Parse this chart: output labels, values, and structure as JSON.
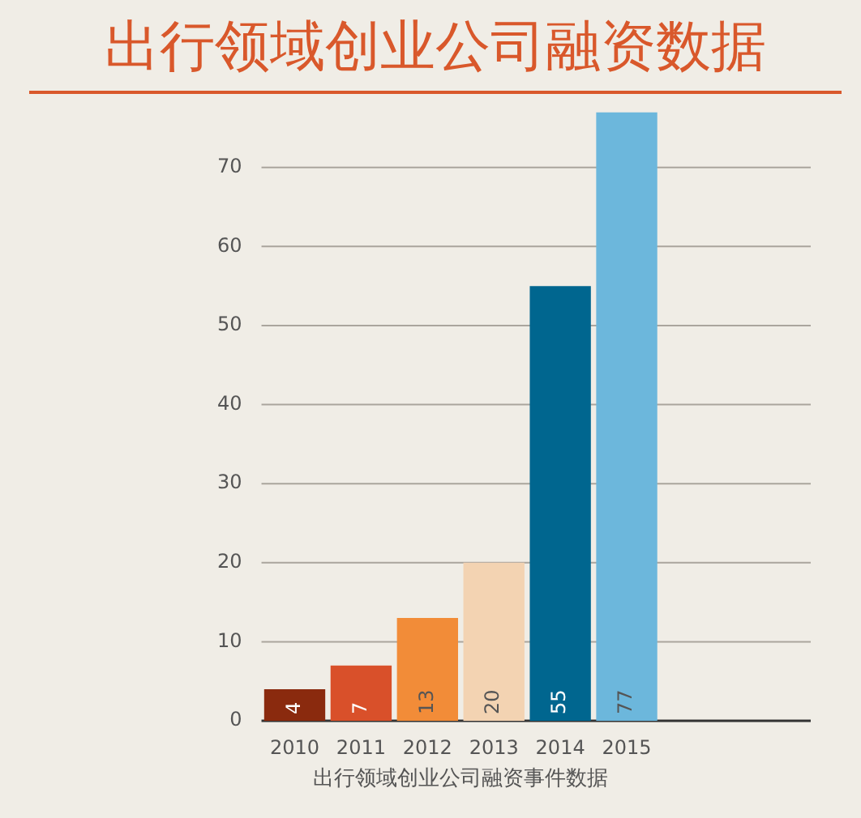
{
  "chart_data": {
    "type": "bar",
    "title": "出行领域创业公司融资数据",
    "xlabel": "出行领域创业公司融资事件数据",
    "categories": [
      "2010",
      "2011",
      "2012",
      "2013",
      "2014",
      "2015"
    ],
    "values": [
      4,
      7,
      13,
      20,
      55,
      77
    ],
    "colors": [
      "#8a2a0e",
      "#d9502a",
      "#f28c38",
      "#f3d3b2",
      "#00668f",
      "#6cb7dc"
    ],
    "data_labels": true,
    "ylim": [
      0,
      77
    ],
    "yticks": [
      0,
      10,
      20,
      30,
      40,
      50,
      60,
      70
    ],
    "grid": "y",
    "legend": false
  }
}
